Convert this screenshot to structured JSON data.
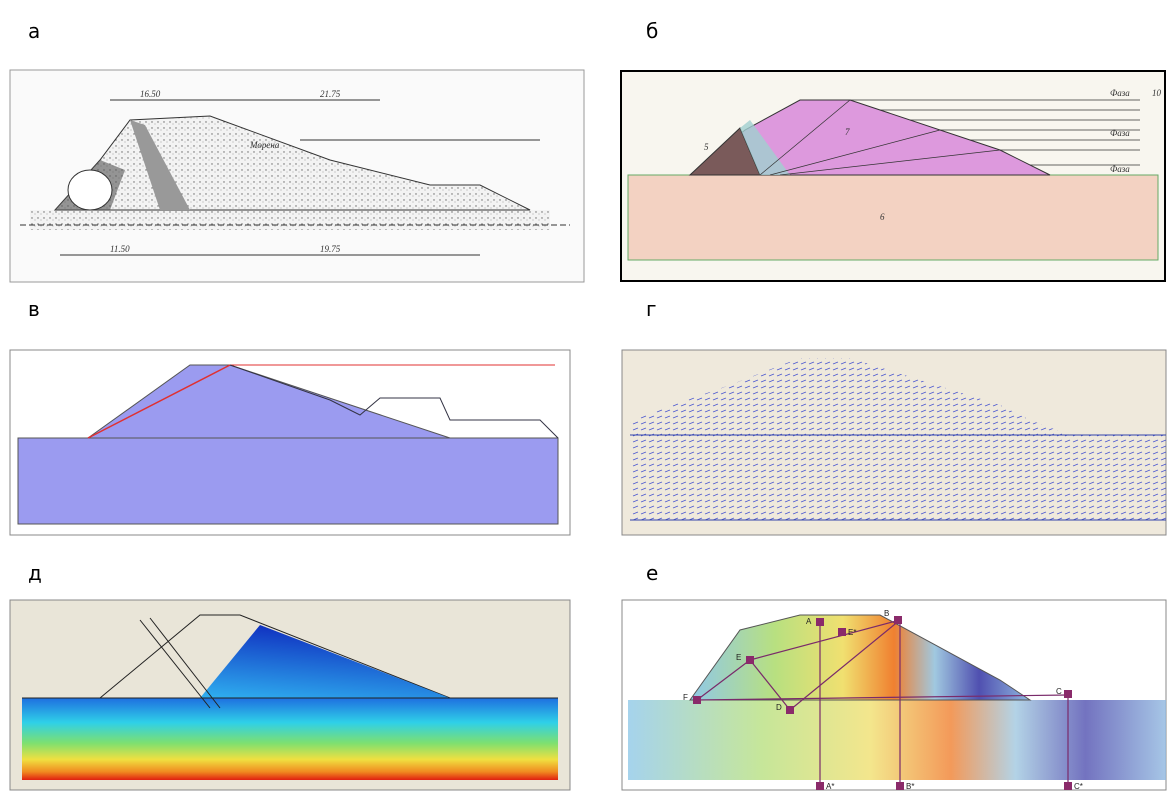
{
  "panels": [
    {
      "label": "а",
      "texts": [
        "16.50",
        "21.75",
        "Морена",
        "11.50",
        "19.75"
      ]
    },
    {
      "label": "б",
      "texts": [
        "Фаза",
        "Фаза",
        "Фаза",
        "10",
        "5",
        "7",
        "6"
      ]
    },
    {
      "label": "в",
      "texts": []
    },
    {
      "label": "г",
      "texts": []
    },
    {
      "label": "д",
      "texts": []
    },
    {
      "label": "е",
      "texts": [
        "A",
        "B",
        "C",
        "D",
        "E",
        "F",
        "A*",
        "B*",
        "C*",
        "E*"
      ]
    }
  ]
}
